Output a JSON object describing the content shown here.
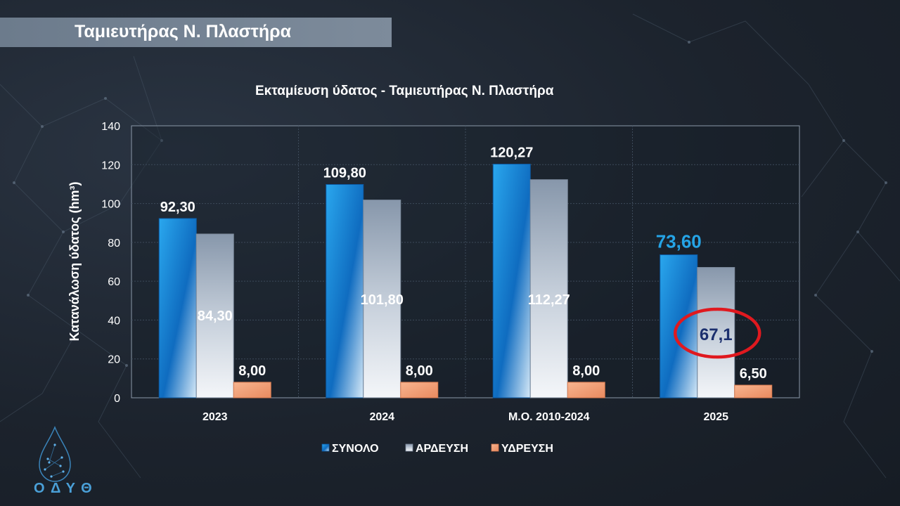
{
  "header": {
    "title": "Ταμιευτήρας Ν. Πλαστήρα"
  },
  "logo": {
    "text": "ΟΔΥΘ",
    "icon": "water-drop-icon"
  },
  "colors": {
    "synolo": "#1a86d6",
    "ardeysi": "#9aa9bc",
    "ydreysi": "#f2a57f",
    "highlight": "#e0191f",
    "accent_label": "#25a4e6",
    "circled_label": "#1b2f6e"
  },
  "chart_data": {
    "type": "bar",
    "title": "Εκταμίευση ύδατος - Ταμιευτήρας Ν. Πλαστήρα",
    "xlabel": "",
    "ylabel": "Κατανάλωση ύδατος (hm³)",
    "ylim": [
      0,
      140
    ],
    "yticks": [
      "0",
      "20",
      "40",
      "60",
      "80",
      "100",
      "120",
      "140"
    ],
    "grid": true,
    "legend_position": "bottom",
    "categories": [
      "2023",
      "2024",
      "Μ.Ο. 2010-2024",
      "2025"
    ],
    "series": [
      {
        "name": "ΣΥΝΟΛΟ",
        "values": [
          92.3,
          109.8,
          120.27,
          73.6
        ],
        "labels": [
          "92,30",
          "109,80",
          "120,27",
          "73,60"
        ]
      },
      {
        "name": "ΑΡΔΕΥΣΗ",
        "values": [
          84.3,
          101.8,
          112.27,
          67.1
        ],
        "labels": [
          "84,30",
          "101,80",
          "112,27",
          "67,1"
        ]
      },
      {
        "name": "ΥΔΡΕΥΣΗ",
        "values": [
          8.0,
          8.0,
          8.0,
          6.5
        ],
        "labels": [
          "8,00",
          "8,00",
          "8,00",
          "6,50"
        ]
      }
    ],
    "annotations": [
      {
        "series": "ΑΡΔΕΥΣΗ",
        "category": "2025",
        "style": "red-ellipse"
      }
    ]
  }
}
